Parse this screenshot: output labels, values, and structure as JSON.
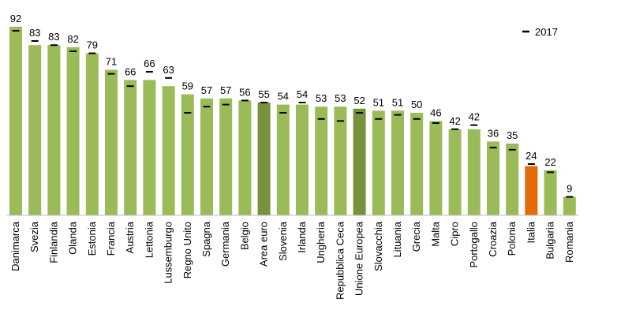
{
  "chart_data": {
    "type": "bar",
    "title": "",
    "xlabel": "",
    "ylabel": "",
    "ylim": [
      0,
      100
    ],
    "categories": [
      "Danimarca",
      "Svezia",
      "Finlandia",
      "Olanda",
      "Estonia",
      "Francia",
      "Austria",
      "Lettonia",
      "Lussemburgo",
      "Regno Unito",
      "Spagna",
      "Germania",
      "Belgio",
      "Area euro",
      "Slovenia",
      "Irlanda",
      "Ungheria",
      "Repubblica Ceca",
      "Unione Europea",
      "Slovacchia",
      "Lituania",
      "Grecia",
      "Malta",
      "Cipro",
      "Portogallo",
      "Croazia",
      "Polonia",
      "Italia",
      "Bulgaria",
      "Romania"
    ],
    "values": [
      92,
      83,
      83,
      82,
      79,
      71,
      66,
      66,
      63,
      59,
      57,
      57,
      56,
      55,
      54,
      54,
      53,
      53,
      52,
      51,
      51,
      50,
      46,
      42,
      42,
      36,
      35,
      24,
      22,
      9
    ],
    "markers_2017": [
      90,
      85,
      83,
      80,
      79,
      69,
      63,
      70,
      67,
      50,
      53,
      54,
      56,
      55,
      50,
      55,
      47,
      46,
      50,
      47,
      49,
      47,
      45,
      42,
      44,
      33,
      32,
      25,
      21,
      9
    ],
    "bar_colors": [
      "#9BBB59",
      "#9BBB59",
      "#9BBB59",
      "#9BBB59",
      "#9BBB59",
      "#9BBB59",
      "#9BBB59",
      "#9BBB59",
      "#9BBB59",
      "#9BBB59",
      "#9BBB59",
      "#9BBB59",
      "#9BBB59",
      "#76923C",
      "#9BBB59",
      "#9BBB59",
      "#9BBB59",
      "#9BBB59",
      "#76923C",
      "#9BBB59",
      "#9BBB59",
      "#9BBB59",
      "#9BBB59",
      "#9BBB59",
      "#9BBB59",
      "#9BBB59",
      "#9BBB59",
      "#E36C0A",
      "#9BBB59",
      "#9BBB59"
    ],
    "legend": [
      {
        "name": "2017",
        "marker": "dash",
        "color": "#000000"
      }
    ],
    "legend_position": "top-right"
  }
}
